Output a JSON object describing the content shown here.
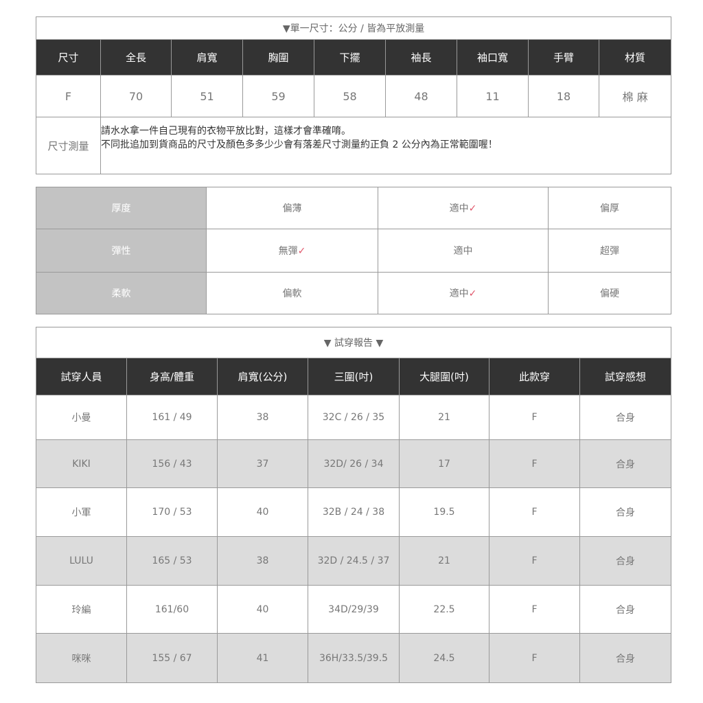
{
  "size_table": {
    "title": "▼單一尺寸：公分 / 皆為平放測量",
    "headers": [
      "尺寸",
      "全長",
      "肩寬",
      "胸圍",
      "下擺",
      "袖長",
      "袖口寬",
      "手臂",
      "材質"
    ],
    "row": [
      "F",
      "70",
      "51",
      "59",
      "58",
      "48",
      "11",
      "18",
      "棉 麻"
    ],
    "note_label": "尺寸測量",
    "note_lines": [
      "請水水拿一件自己現有的衣物平放比對，這樣才會準確唷。",
      "不同批追加到貨商品的尺寸及顏色多多少少會有落差尺寸測量約正負 2 公分內為正常範圍喔！"
    ]
  },
  "feel_table": {
    "check": "✓",
    "rows": [
      {
        "label": "厚度",
        "options": [
          "偏薄",
          "適中",
          "偏厚"
        ],
        "selected": 1
      },
      {
        "label": "彈性",
        "options": [
          "無彈",
          "適中",
          "超彈"
        ],
        "selected": 0
      },
      {
        "label": "柔軟",
        "options": [
          "偏軟",
          "適中",
          "偏硬"
        ],
        "selected": 1
      }
    ]
  },
  "fit_table": {
    "title": "▼ 試穿報告 ▼",
    "headers": [
      "試穿人員",
      "身高/體重",
      "肩寬(公分)",
      "三圍(吋)",
      "大腿圍(吋)",
      "此款穿",
      "試穿感想"
    ],
    "rows": [
      [
        "小曼",
        "161 / 49",
        "38",
        "32C / 26 / 35",
        "21",
        "F",
        "合身"
      ],
      [
        "KIKI",
        "156 / 43",
        "37",
        "32D/ 26 / 34",
        "17",
        "F",
        "合身"
      ],
      [
        "小軍",
        "170 / 53",
        "40",
        "32B / 24 / 38",
        "19.5",
        "F",
        "合身"
      ],
      [
        "LULU",
        "165 / 53",
        "38",
        "32D / 24.5 / 37",
        "21",
        "F",
        "合身"
      ],
      [
        "玲編",
        "161/60",
        "40",
        "34D/29/39",
        "22.5",
        "F",
        "合身"
      ],
      [
        "咪咪",
        "155 / 67",
        "41",
        "36H/33.5/39.5",
        "24.5",
        "F",
        "合身"
      ]
    ]
  },
  "colors": {
    "header_bg": "#333333",
    "label_bg": "#c3c3c3",
    "alt_row": "#dcdcdc",
    "check": "#e0566a"
  }
}
